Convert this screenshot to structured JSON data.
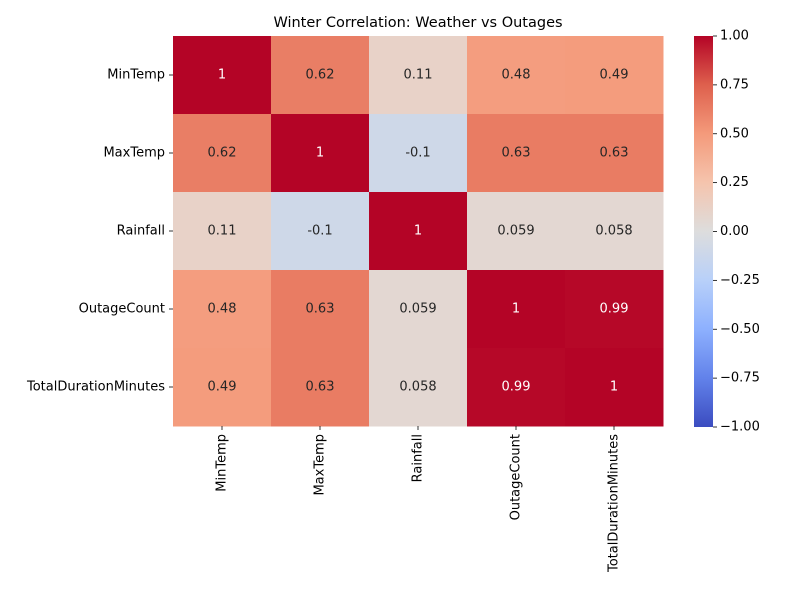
{
  "chart_data": {
    "type": "heatmap",
    "title": "Winter Correlation: Weather vs Outages",
    "xlabel": "",
    "ylabel": "",
    "row_labels": [
      "MinTemp",
      "MaxTemp",
      "Rainfall",
      "OutageCount",
      "TotalDurationMinutes"
    ],
    "col_labels": [
      "MinTemp",
      "MaxTemp",
      "Rainfall",
      "OutageCount",
      "TotalDurationMinutes"
    ],
    "values": [
      [
        1,
        0.62,
        0.11,
        0.48,
        0.49
      ],
      [
        0.62,
        1,
        -0.1,
        0.63,
        0.63
      ],
      [
        0.11,
        -0.1,
        1,
        0.059,
        0.058
      ],
      [
        0.48,
        0.63,
        0.059,
        1,
        0.99
      ],
      [
        0.49,
        0.63,
        0.058,
        0.99,
        1
      ]
    ],
    "cell_labels": [
      [
        "1",
        "0.62",
        "0.11",
        "0.48",
        "0.49"
      ],
      [
        "0.62",
        "1",
        "-0.1",
        "0.63",
        "0.63"
      ],
      [
        "0.11",
        "-0.1",
        "1",
        "0.059",
        "0.058"
      ],
      [
        "0.48",
        "0.63",
        "0.059",
        "1",
        "0.99"
      ],
      [
        "0.49",
        "0.63",
        "0.058",
        "0.99",
        "1"
      ]
    ],
    "colormap": "coolwarm",
    "vmin": -1.0,
    "vmax": 1.0,
    "colorbar_ticks": [
      1.0,
      0.75,
      0.5,
      0.25,
      0.0,
      -0.25,
      -0.5,
      -0.75,
      -1.0
    ],
    "colorbar_tick_labels": [
      "1.00",
      "0.75",
      "0.50",
      "0.25",
      "0.00",
      "−0.25",
      "−0.50",
      "−0.75",
      "−1.00"
    ],
    "colors": {
      "low": "#3b4cc0",
      "mid": "#dddddd",
      "high": "#b40426",
      "axis_text": "#262626"
    },
    "grid": false,
    "legend": "colorbar-right"
  }
}
